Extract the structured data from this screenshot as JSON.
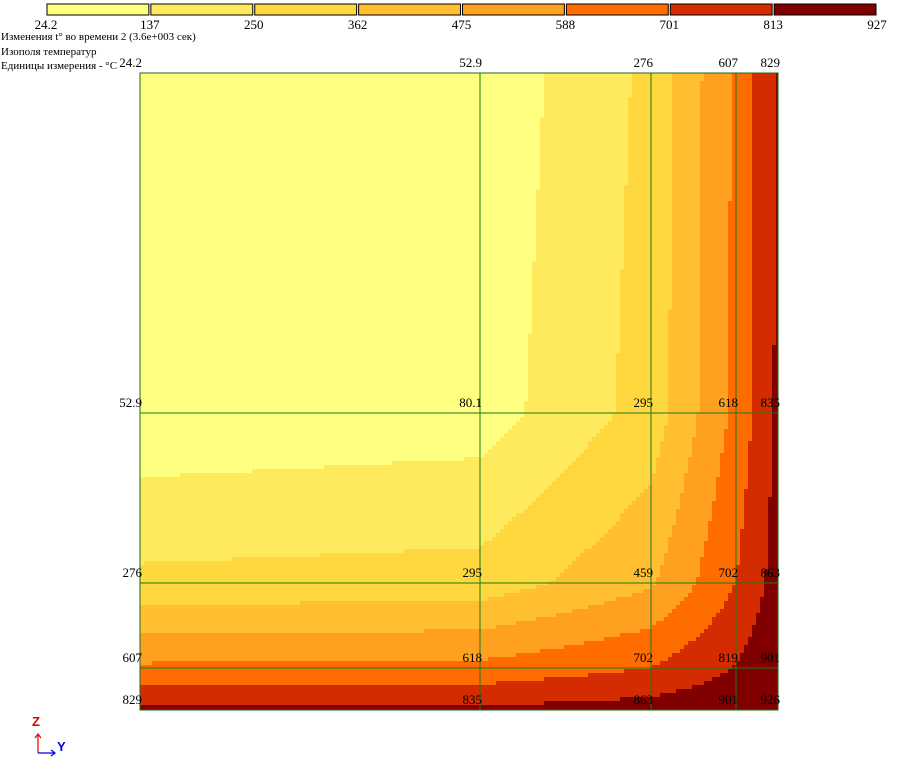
{
  "colorbar": {
    "ticks": [
      "24.2",
      "137",
      "250",
      "362",
      "475",
      "588",
      "701",
      "813",
      "927"
    ],
    "colors": [
      "#ffff80",
      "#ffea5e",
      "#ffd840",
      "#ffbf30",
      "#ffa020",
      "#ff6c00",
      "#d42c00",
      "#800000"
    ]
  },
  "titles": {
    "line1": "Изменения t° во времени 2 (3.6e+003 сек)",
    "line2": "Изополя температур",
    "line3": "Единицы измерения - °C"
  },
  "chart_data": {
    "type": "heatmap",
    "title": "Изополя температур",
    "units": "°C",
    "value_range": [
      24.2,
      927
    ],
    "grid_lines": true,
    "rows": [
      [
        "24.2",
        "52.9",
        "276",
        "607",
        "829"
      ],
      [
        "52.9",
        "80.1",
        "295",
        "618",
        "835"
      ],
      [
        "276",
        "295",
        "459",
        "702",
        "863"
      ],
      [
        "607",
        "618",
        "702",
        "819",
        "901"
      ],
      [
        "829",
        "835",
        "863",
        "901",
        "926"
      ]
    ],
    "row_values": [
      [
        24.2,
        52.9,
        276,
        607,
        829
      ],
      [
        52.9,
        80.1,
        295,
        618,
        835
      ],
      [
        276,
        295,
        459,
        702,
        863
      ],
      [
        607,
        618,
        702,
        819,
        901
      ],
      [
        829,
        835,
        863,
        901,
        926
      ]
    ]
  },
  "axes_indicator": {
    "vertical_label": "Z",
    "horizontal_label": "Y",
    "vertical_color": "#e00000",
    "horizontal_color": "#0000e0"
  }
}
